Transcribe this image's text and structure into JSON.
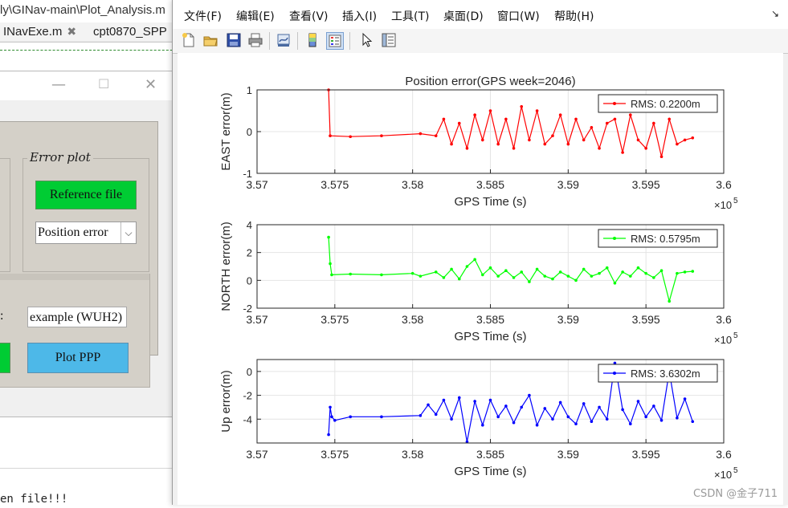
{
  "editor": {
    "title": "ly\\GINav-main\\Plot_Analysis.m",
    "tabs": [
      {
        "label": "INavExe.m",
        "close": "✖"
      },
      {
        "label": "cpt0870_SPP",
        "close": ""
      }
    ],
    "bottom_text": "en file!!!"
  },
  "gui": {
    "window_buttons": [
      "—",
      "☐",
      "✕"
    ],
    "error_plot_title": "Error plot",
    "reference_button": "Reference file",
    "plot_type_select": {
      "value": "Position error",
      "arrow": "⌵"
    },
    "colon": ":",
    "example_input_value": "example (WUH2)",
    "plot_ppp_button": "Plot PPP"
  },
  "figure": {
    "menu": [
      "文件(F)",
      "编辑(E)",
      "查看(V)",
      "插入(I)",
      "工具(T)",
      "桌面(D)",
      "窗口(W)",
      "帮助(H)"
    ],
    "menu_dock_arrow": "↘",
    "toolbar_icons": [
      "new-figure-icon",
      "open-folder-icon",
      "save-icon",
      "print-icon",
      "link-icon",
      "colorbar-icon",
      "legend-icon",
      "pointer-icon",
      "property-inspector-icon"
    ],
    "watermark": "CSDN @金子711"
  },
  "chart_data": [
    {
      "type": "line",
      "title": "Position error(GPS week=2046)",
      "xlabel": "GPS Time (s)",
      "ylabel": "EAST error(m)",
      "x_exponent": "×10^5",
      "xlim": [
        3.57,
        3.6
      ],
      "ylim": [
        -1,
        1
      ],
      "xticks": [
        "3.57",
        "3.575",
        "3.58",
        "3.585",
        "3.59",
        "3.595",
        "3.6"
      ],
      "yticks": [
        "-1",
        "0",
        "1"
      ],
      "grid": true,
      "color": "#ff0000",
      "legend": "RMS: 0.2200m",
      "legend_position": "top-right",
      "series": [
        {
          "name": "RMS: 0.2200m",
          "x": [
            3.5746,
            3.5747,
            3.576,
            3.578,
            3.5805,
            3.5815,
            3.582,
            3.5825,
            3.583,
            3.5835,
            3.584,
            3.5845,
            3.585,
            3.5855,
            3.586,
            3.5865,
            3.587,
            3.5875,
            3.588,
            3.5885,
            3.589,
            3.5895,
            3.59,
            3.5905,
            3.591,
            3.5915,
            3.592,
            3.5925,
            3.593,
            3.5935,
            3.594,
            3.5945,
            3.595,
            3.5955,
            3.596,
            3.5965,
            3.597,
            3.5975,
            3.598
          ],
          "y": [
            1.0,
            -0.1,
            -0.12,
            -0.1,
            -0.05,
            -0.1,
            0.3,
            -0.3,
            0.2,
            -0.4,
            0.4,
            -0.2,
            0.5,
            -0.3,
            0.3,
            -0.4,
            0.6,
            -0.2,
            0.5,
            -0.3,
            -0.1,
            0.4,
            -0.3,
            0.3,
            -0.2,
            0.1,
            -0.4,
            0.2,
            0.3,
            -0.5,
            0.4,
            -0.2,
            -0.4,
            0.2,
            -0.6,
            0.3,
            -0.3,
            -0.2,
            -0.15
          ]
        }
      ]
    },
    {
      "type": "line",
      "title": "",
      "xlabel": "GPS Time (s)",
      "ylabel": "NORTH error(m)",
      "x_exponent": "×10^5",
      "xlim": [
        3.57,
        3.6
      ],
      "ylim": [
        -2,
        4
      ],
      "xticks": [
        "3.57",
        "3.575",
        "3.58",
        "3.585",
        "3.59",
        "3.595",
        "3.6"
      ],
      "yticks": [
        "-2",
        "0",
        "2",
        "4"
      ],
      "grid": true,
      "color": "#00ff00",
      "legend": "RMS: 0.5795m",
      "legend_position": "top-right",
      "series": [
        {
          "name": "RMS: 0.5795m",
          "x": [
            3.5746,
            3.5747,
            3.5748,
            3.576,
            3.578,
            3.58,
            3.5805,
            3.5815,
            3.582,
            3.5825,
            3.583,
            3.5835,
            3.584,
            3.5845,
            3.585,
            3.5855,
            3.586,
            3.5865,
            3.587,
            3.5875,
            3.588,
            3.5885,
            3.589,
            3.5895,
            3.59,
            3.5905,
            3.591,
            3.5915,
            3.592,
            3.5925,
            3.593,
            3.5935,
            3.594,
            3.5945,
            3.595,
            3.5955,
            3.596,
            3.5965,
            3.597,
            3.5975,
            3.598
          ],
          "y": [
            3.1,
            1.2,
            0.4,
            0.45,
            0.4,
            0.5,
            0.3,
            0.6,
            0.2,
            0.8,
            0.1,
            1.0,
            1.5,
            0.4,
            0.9,
            0.3,
            0.7,
            0.2,
            0.6,
            -0.1,
            0.8,
            0.3,
            0.1,
            0.6,
            0.3,
            0.0,
            0.8,
            0.3,
            0.5,
            0.9,
            -0.2,
            0.6,
            0.3,
            0.9,
            0.5,
            0.2,
            0.7,
            -1.5,
            0.5,
            0.6,
            0.65
          ]
        }
      ]
    },
    {
      "type": "line",
      "title": "",
      "xlabel": "GPS Time (s)",
      "ylabel": "Up error(m)",
      "x_exponent": "×10^5",
      "xlim": [
        3.57,
        3.6
      ],
      "ylim": [
        -6,
        1
      ],
      "xticks": [
        "3.57",
        "3.575",
        "3.58",
        "3.585",
        "3.59",
        "3.595",
        "3.6"
      ],
      "yticks": [
        "-4",
        "-2",
        "0"
      ],
      "grid": true,
      "color": "#0000ff",
      "legend": "RMS: 3.6302m",
      "legend_position": "top-right",
      "series": [
        {
          "name": "RMS: 3.6302m",
          "x": [
            3.5746,
            3.5747,
            3.5748,
            3.575,
            3.576,
            3.578,
            3.5805,
            3.581,
            3.5815,
            3.582,
            3.5825,
            3.583,
            3.5835,
            3.584,
            3.5845,
            3.585,
            3.5855,
            3.586,
            3.5865,
            3.587,
            3.5875,
            3.588,
            3.5885,
            3.589,
            3.5895,
            3.59,
            3.5905,
            3.591,
            3.5915,
            3.592,
            3.5925,
            3.593,
            3.5935,
            3.594,
            3.5945,
            3.595,
            3.5955,
            3.596,
            3.5965,
            3.597,
            3.5975,
            3.598
          ],
          "y": [
            -5.3,
            -3.0,
            -3.8,
            -4.1,
            -3.8,
            -3.8,
            -3.7,
            -2.8,
            -3.6,
            -2.4,
            -4.0,
            -2.2,
            -5.9,
            -2.5,
            -4.5,
            -2.4,
            -3.8,
            -2.9,
            -4.3,
            -3.0,
            -2.0,
            -4.5,
            -3.1,
            -4.0,
            -2.6,
            -3.8,
            -4.4,
            -2.7,
            -4.2,
            -3.0,
            -4.0,
            0.7,
            -3.2,
            -4.4,
            -2.5,
            -3.8,
            -2.9,
            -4.1,
            0.0,
            -3.9,
            -2.3,
            -4.2
          ]
        }
      ]
    }
  ]
}
